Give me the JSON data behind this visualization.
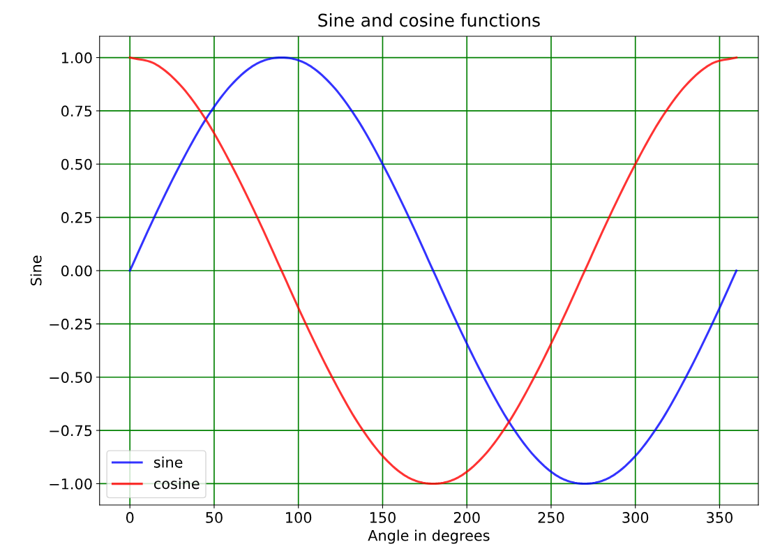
{
  "chart_data": {
    "type": "line",
    "title": "Sine and cosine functions",
    "xlabel": "Angle in degrees",
    "ylabel": "Sine",
    "x": [
      0,
      15,
      30,
      45,
      60,
      75,
      90,
      105,
      120,
      135,
      150,
      165,
      180,
      195,
      210,
      225,
      240,
      255,
      270,
      285,
      300,
      315,
      330,
      345,
      360
    ],
    "series": [
      {
        "name": "sine",
        "color": "#0000ff",
        "values": [
          0.0,
          0.26,
          0.5,
          0.71,
          0.87,
          0.97,
          1.0,
          0.97,
          0.87,
          0.71,
          0.5,
          0.26,
          0.0,
          -0.26,
          -0.5,
          -0.71,
          -0.87,
          -0.97,
          -1.0,
          -0.97,
          -0.87,
          -0.71,
          -0.5,
          -0.26,
          0.0
        ]
      },
      {
        "name": "cosine",
        "color": "#ff0000",
        "values": [
          1.0,
          0.97,
          0.87,
          0.71,
          0.5,
          0.26,
          0.0,
          -0.26,
          -0.5,
          -0.71,
          -0.87,
          -0.97,
          -1.0,
          -0.97,
          -0.87,
          -0.71,
          -0.5,
          -0.26,
          0.0,
          0.26,
          0.5,
          0.71,
          0.87,
          0.97,
          1.0
        ]
      }
    ],
    "xlim": [
      -18,
      373
    ],
    "ylim": [
      -1.1,
      1.1
    ],
    "xticks": [
      0,
      50,
      100,
      150,
      200,
      250,
      300,
      350
    ],
    "yticks": [
      {
        "value": 1,
        "label": "1.00"
      },
      {
        "value": 0.75,
        "label": "0.75"
      },
      {
        "value": 0.5,
        "label": "0.50"
      },
      {
        "value": 0.25,
        "label": "0.25"
      },
      {
        "value": 0,
        "label": "0.00"
      },
      {
        "value": -0.25,
        "label": "−0.25"
      },
      {
        "value": -0.5,
        "label": "−0.50"
      },
      {
        "value": -0.75,
        "label": "−0.75"
      },
      {
        "value": -1,
        "label": "−1.00"
      }
    ],
    "grid": true,
    "legend": "lower left",
    "marker": "none",
    "line_style": "solid"
  }
}
